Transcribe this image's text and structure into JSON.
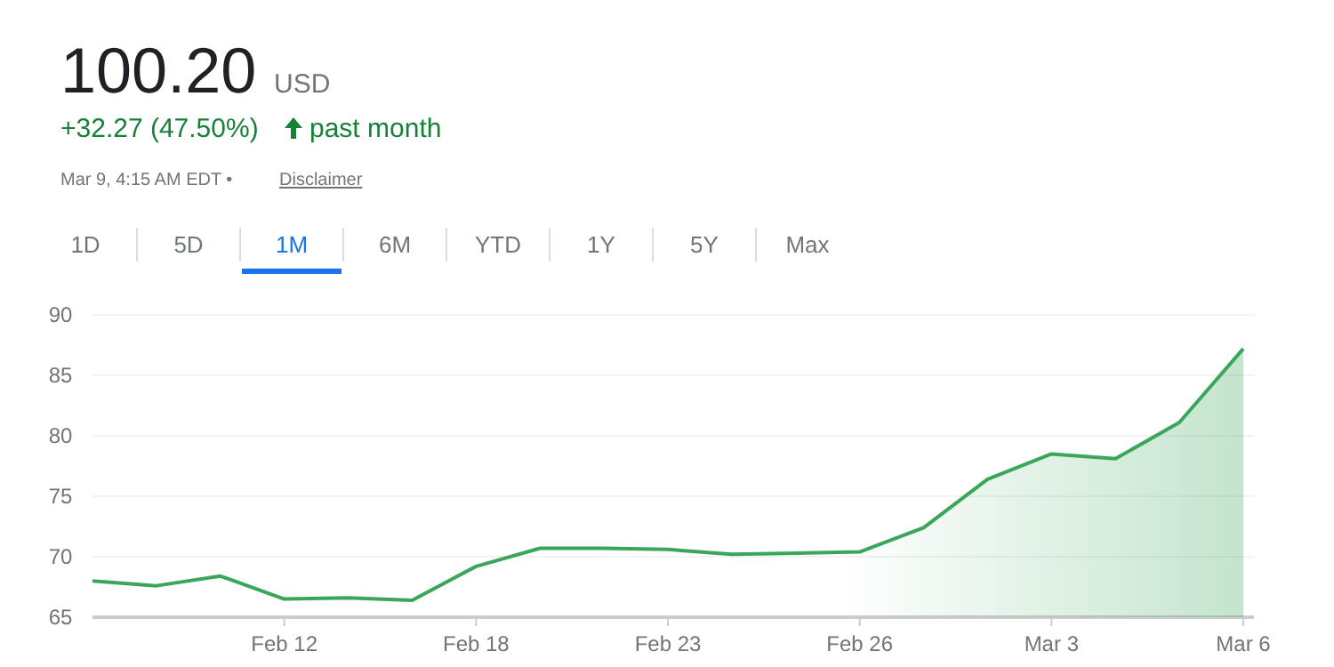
{
  "chart_data": {
    "type": "area",
    "title": "100.20",
    "annotations": [
      "USD",
      "+32.27 (47.50%)",
      "past month",
      "Mar 9, 4:15 AM EDT •",
      "Disclaimer",
      "1D",
      "5D",
      "1M",
      "6M",
      "YTD",
      "1Y",
      "5Y",
      "Max"
    ],
    "categories": [
      null,
      null,
      null,
      "Feb 12",
      null,
      null,
      "Feb 18",
      null,
      null,
      "Feb 23",
      null,
      null,
      "Feb 26",
      null,
      null,
      "Mar 3",
      null,
      null,
      "Mar 6"
    ],
    "series": [
      {
        "color": "#3aa65a",
        "values": [
          68.0,
          67.6,
          68.4,
          66.5,
          66.6,
          66.4,
          69.2,
          70.7,
          70.7,
          70.6,
          70.2,
          70.3,
          70.4,
          72.4,
          76.4,
          78.5,
          78.1,
          81.1,
          87.2
        ]
      }
    ],
    "ylim": [
      65,
      90
    ],
    "yticks": [
      65,
      70,
      75,
      80,
      85,
      90
    ],
    "grid": "y"
  }
}
